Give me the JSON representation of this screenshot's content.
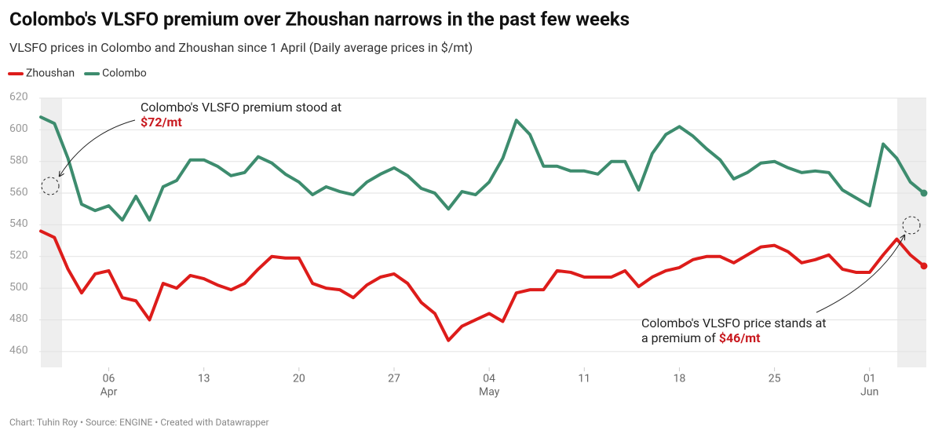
{
  "chart_data": {
    "type": "line",
    "title": "Colombo's VLSFO premium over Zhoushan narrows in the past few weeks",
    "subtitle": "VLSFO prices in Colombo and Zhoushan since 1 April (Daily average prices in $/mt)",
    "source": "Chart: Tuhin Roy • Source: ENGINE • Created with Datawrapper",
    "categories": [
      null,
      null,
      null,
      null,
      null,
      [
        "06",
        "Apr"
      ],
      null,
      null,
      null,
      null,
      null,
      null,
      [
        "13"
      ],
      null,
      null,
      null,
      null,
      null,
      null,
      [
        "20"
      ],
      null,
      null,
      null,
      null,
      null,
      null,
      [
        "27"
      ],
      null,
      null,
      null,
      null,
      null,
      null,
      [
        "04",
        "May"
      ],
      null,
      null,
      null,
      null,
      null,
      null,
      [
        "11"
      ],
      null,
      null,
      null,
      null,
      null,
      null,
      [
        "18"
      ],
      null,
      null,
      null,
      null,
      null,
      null,
      [
        "25"
      ],
      null,
      null,
      null,
      null,
      null,
      null,
      [
        "01",
        "Jun"
      ],
      null,
      null,
      null,
      null
    ],
    "series": [
      {
        "name": "Zhoushan",
        "color": "#dd1c1a",
        "values": [
          536,
          532,
          512,
          497,
          509,
          511,
          494,
          492,
          480,
          503,
          500,
          508,
          506,
          502,
          499,
          503,
          512,
          520,
          519,
          519,
          503,
          500,
          499,
          494,
          502,
          507,
          509,
          503,
          491,
          484,
          467,
          476,
          480,
          484,
          479,
          497,
          499,
          499,
          511,
          510,
          507,
          507,
          507,
          511,
          501,
          507,
          511,
          513,
          518,
          520,
          520,
          516,
          521,
          526,
          527,
          523,
          516,
          518,
          521,
          512,
          510,
          510,
          521,
          531,
          521,
          514
        ]
      },
      {
        "name": "Colombo",
        "color": "#3d8c6e",
        "values": [
          608,
          604,
          582,
          553,
          549,
          552,
          543,
          558,
          543,
          564,
          568,
          581,
          581,
          577,
          571,
          573,
          583,
          579,
          572,
          567,
          559,
          564,
          561,
          559,
          567,
          572,
          576,
          571,
          563,
          560,
          550,
          561,
          559,
          567,
          582,
          606,
          597,
          577,
          577,
          574,
          574,
          572,
          580,
          580,
          562,
          585,
          597,
          602,
          596,
          588,
          581,
          569,
          573,
          579,
          580,
          576,
          573,
          574,
          573,
          562,
          557,
          552,
          591,
          582,
          567,
          560
        ]
      }
    ],
    "ylim": [
      450,
      620
    ],
    "yticks": [
      460,
      480,
      500,
      520,
      540,
      560,
      580,
      600,
      620
    ],
    "grid": true,
    "legend": "top-left",
    "annotations": [
      {
        "lines": [
          [
            "Colombo's VLSFO premium stood at"
          ],
          [
            "$72/mt"
          ]
        ]
      },
      {
        "lines": [
          [
            "Colombo's VLSFO price stands at"
          ],
          [
            "a premium of ",
            "$46/mt"
          ]
        ]
      }
    ]
  }
}
